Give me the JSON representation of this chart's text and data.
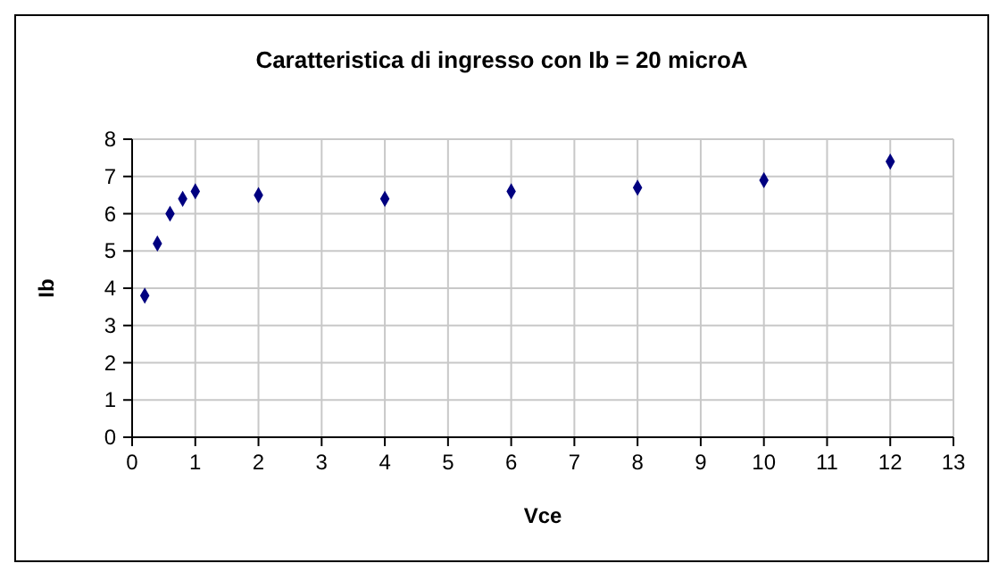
{
  "chart_data": {
    "type": "scatter",
    "title": "Caratteristica di ingresso con Ib = 20 microA",
    "xlabel": "Vce",
    "ylabel": "Ib",
    "x": [
      0.2,
      0.4,
      0.6,
      0.8,
      1,
      2,
      4,
      6,
      8,
      10,
      12
    ],
    "series": [
      {
        "color": "#000080",
        "values": [
          3.8,
          5.2,
          6.0,
          6.4,
          6.6,
          6.5,
          6.4,
          6.6,
          6.7,
          6.9,
          7.4
        ]
      }
    ],
    "xlim": [
      0,
      13
    ],
    "xticks": [
      0,
      1,
      2,
      3,
      4,
      5,
      6,
      7,
      8,
      9,
      10,
      11,
      12,
      13
    ],
    "ylim": [
      0,
      8
    ],
    "yticks": [
      0,
      1,
      2,
      3,
      4,
      5,
      6,
      7,
      8
    ],
    "grid": true,
    "marker": "diamond"
  }
}
